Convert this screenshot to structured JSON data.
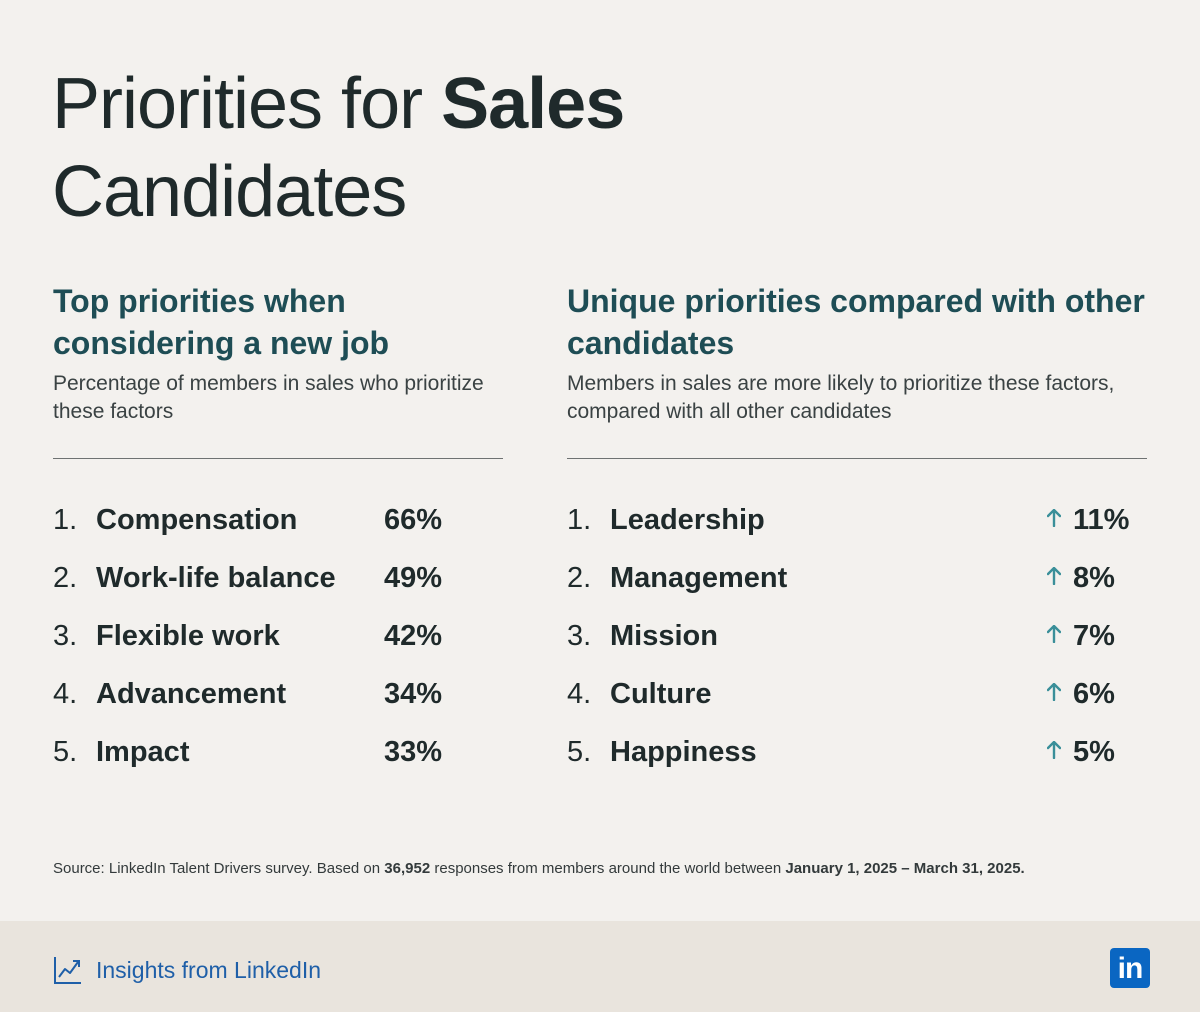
{
  "title": {
    "part1": "Priorities for ",
    "part2_bold": "Sales",
    "part3": "Candidates"
  },
  "left": {
    "heading_bold": "Top priorities",
    "heading_rest": " when considering a new job",
    "subtitle": "Percentage of members in sales who prioritize these factors",
    "items": [
      {
        "num": "1.",
        "label": "Compensation",
        "value": "66%"
      },
      {
        "num": "2.",
        "label": "Work-life balance",
        "value": "49%"
      },
      {
        "num": "3.",
        "label": "Flexible work",
        "value": "42%"
      },
      {
        "num": "4.",
        "label": "Advancement",
        "value": "34%"
      },
      {
        "num": "5.",
        "label": "Impact",
        "value": "33%"
      }
    ]
  },
  "right": {
    "heading_bold": "Unique priorities",
    "heading_rest": " compared with other candidates",
    "subtitle": "Members in sales are more likely to prioritize these factors, compared with all other candidates",
    "items": [
      {
        "num": "1.",
        "label": "Leadership",
        "value": "11%"
      },
      {
        "num": "2.",
        "label": "Management",
        "value": "8%"
      },
      {
        "num": "3.",
        "label": "Mission",
        "value": "7%"
      },
      {
        "num": "4.",
        "label": "Culture",
        "value": "6%"
      },
      {
        "num": "5.",
        "label": "Happiness",
        "value": "5%"
      }
    ]
  },
  "source": {
    "prefix": "Source: LinkedIn Talent Drivers survey. Based on ",
    "count_bold": "36,952",
    "middle": " responses from members around the world between ",
    "dates_bold": "January 1, 2025 – March 31, 2025."
  },
  "footer": {
    "brand_text": "Insights from LinkedIn",
    "brand_icon": "trend-chart-icon",
    "logo_text": "in"
  },
  "colors": {
    "background": "#f3f1ee",
    "heading_teal": "#1e4d55",
    "arrow_teal": "#3a8f99",
    "brand_blue": "#1f5fa8",
    "linkedin_blue": "#0a66c2",
    "footer_bg": "#e9e4dd"
  }
}
